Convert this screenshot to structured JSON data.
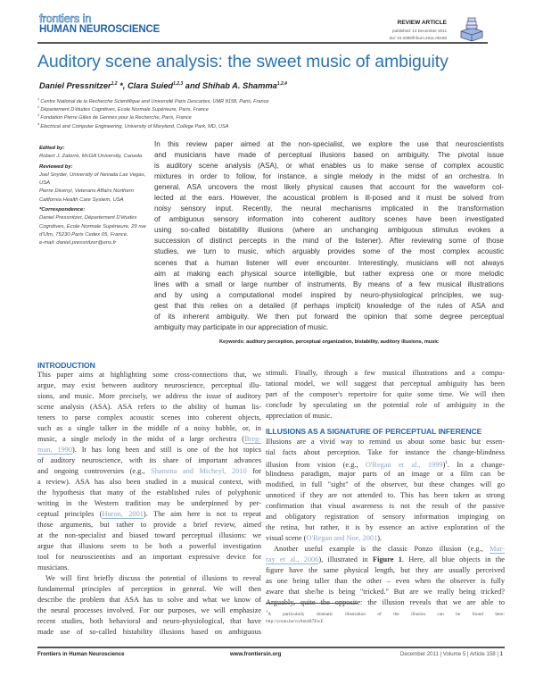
{
  "header": {
    "journal_top": "frontiers in",
    "journal_bottom": "HUMAN NEUROSCIENCE",
    "article_type": "REVIEW ARTICLE",
    "published": "published: 14 December 2011",
    "doi": "doi: 10.3389/fnhum.2011.00158",
    "logo_icon": "stacked-books-icon"
  },
  "title": "Auditory scene analysis: the sweet music of ambiguity",
  "authors": [
    {
      "name": "Daniel Pressnitzer",
      "sup": "1,2",
      "after": " *, "
    },
    {
      "name": "Clara Suied",
      "sup": "1,2,3",
      "after": " and "
    },
    {
      "name": "Shihab A. Shamma",
      "sup": "1,2,4",
      "after": ""
    }
  ],
  "affiliations": [
    {
      "sup": "1",
      "text": "Centre National de la Recherche Scientifique and Université Paris Descartes, UMR 8158, Paris, France"
    },
    {
      "sup": "2",
      "text": "Département D'études Cognitives, Ecole Normale Supérieure, Paris, France"
    },
    {
      "sup": "3",
      "text": "Fondation Pierre Gilles de Gennes pour la Recherche, Paris, France"
    },
    {
      "sup": "4",
      "text": "Electrical and Computer Engineering, University of Maryland, College Park, MD, USA"
    }
  ],
  "sidebar": {
    "edited_label": "Edited by:",
    "edited_text": "Robert J. Zatorre, McGill University, Canada",
    "reviewed_label": "Reviewed by:",
    "reviewed_text_1": "Joel Snyder, University of Nevada Las Vegas, USA",
    "reviewed_text_2": "Pierre Divenyi, Veterans Affairs Northern California Health Care System, USA",
    "corr_label": "*Correspondence:",
    "corr_text": "Daniel Pressnitzer, Département D'études Cognitives, Ecole Normale Supérieure, 29 rue d'Ulm, 75230 Paris Cedex 05, France.",
    "corr_email": "e-mail: daniel.pressnitzer@ens.fr"
  },
  "abstract": [
    "In this review paper aimed at the non-specialist, we explore the use that neuroscientists",
    "and musicians have made of perceptual illusions based on ambiguity. The pivotal issue",
    "is auditory scene analysis (ASA), or what enables us to make sense of complex acoustic",
    "mixtures in order to follow, for instance, a single melody in the midst of an orchestra. In",
    "general, ASA uncovers the most likely physical causes that account for the waveform col-",
    "lected at the ears. However, the acoustical problem is ill-posed and it must be solved from",
    "noisy sensory input. Recently, the neural mechanisms implicated in the transformation",
    "of ambiguous sensory information into coherent auditory scenes have been investigated",
    "using so-called bistability illusions (where an unchanging ambiguous stimulus evokes a",
    "succession of distinct percepts in the mind of the listener). After reviewing some of those",
    "studies, we turn to music, which arguably provides some of the most complex acoustic",
    "scenes that a human listener will ever encounter. Interestingly, musicians will not always",
    "aim at making each physical source intelligible, but rather express one or more melodic",
    "lines with a small or large number of instruments. By means of a few musical illustrations",
    "and by using a computational model inspired by neuro-physiological principles, we sug-",
    "gest that this relies on a detailed (if perhaps implicit) knowledge of the rules of ASA and",
    "of its inherent ambiguity. We then put forward the opinion that some degree perceptual",
    "ambiguity may participate in our appreciation of music."
  ],
  "keywords": "Keywords: auditory perception, perceptual organization, bistability, auditory illusions, music",
  "intro": {
    "heading": "INTRODUCTION",
    "lines": [
      [
        "This paper aims at highlighting some cross-connections that, we"
      ],
      [
        "argue, may exist between auditory neuroscience, perceptual illu-"
      ],
      [
        "sions, and music. More precisely, we address the issue of auditory"
      ],
      [
        "scene analysis (ASA). ASA refers to the ability of human lis-"
      ],
      [
        "teners to parse complex acoustic scenes into coherent objects,"
      ],
      [
        "such as a single talker in the middle of a noisy babble, or, in"
      ],
      [
        "music, a single melody in the midst of a large orchestra (",
        {
          "link": "Breg-",
          "u": true
        }
      ],
      [
        {
          "link": "man, 1990",
          "u": true
        },
        "). It has long been and still is one of the hot topics"
      ],
      [
        "of auditory neuroscience, with its share of important advances"
      ],
      [
        "and ongoing controversies (e.g., ",
        {
          "link": "Shamma and Micheyl, 2010"
        },
        " for"
      ],
      [
        "a review). ASA has also been studied in a musical context, with"
      ],
      [
        "the hypothesis that many of the established rules of polyphonic"
      ],
      [
        "writing in the Western tradition may be underpinned by per-"
      ],
      [
        "ceptual principles (",
        {
          "link": "Huron, 2001",
          "u": true
        },
        "). The aim here is not to repeat"
      ],
      [
        "those arguments, but rather to provide a brief review, aimed"
      ],
      [
        "at the non-specialist and biased toward perceptual illusions: we"
      ],
      [
        "argue that illusions seem to be both a powerful investigation"
      ],
      [
        "tool for neuroscientists and an important expressive device for"
      ],
      [
        "musicians.",
        {
          "end": true
        }
      ],
      [
        {
          "indent": true
        },
        "We will first briefly discuss the potential of illusions to reveal"
      ],
      [
        "fundamental principles of perception in general. We will then"
      ],
      [
        "describe the problem that ASA has to solve and what we know of"
      ],
      [
        "the neural processes involved. For our purposes, we will emphasize"
      ],
      [
        "recent studies, both behavioral and neuro-physiological, that have"
      ],
      [
        "made use of so-called bistability illusions based on ambiguous"
      ]
    ]
  },
  "continuation": {
    "lines": [
      [
        "stimuli. Finally, through a few musical illustrations and a compu-"
      ],
      [
        "tational model, we will suggest that perceptual ambiguity has been"
      ],
      [
        "part of the composer's repertoire for quite some time. We will then"
      ],
      [
        "conclude by speculating on the potential role of ambiguity in the"
      ],
      [
        "appreciation of music.",
        {
          "end": true
        }
      ]
    ]
  },
  "illusions": {
    "heading": "ILLUSIONS AS A SIGNATURE OF PERCEPTUAL INFERENCE",
    "lines": [
      [
        "Illusions are a vivid way to remind us about some basic but essen-"
      ],
      [
        "tial facts about perception. Take for instance the change-blindness"
      ],
      [
        "illusion from vision (e.g., ",
        {
          "link": "O'Regan et al., 1999"
        },
        ")",
        {
          "sup": "1"
        },
        ". In a change-"
      ],
      [
        "blindness paradigm, major parts of an image or a film can be"
      ],
      [
        "modified, in full \"sight\" of the observer, but these changes will go"
      ],
      [
        "unnoticed if they are not attended to. This has been taken as strong"
      ],
      [
        "confirmation that visual awareness is not the result of the passive"
      ],
      [
        "and obligatory registration of sensory information impinging on"
      ],
      [
        "the retina, but rather, it is by essence an active exploration of the"
      ],
      [
        "visual scene (",
        {
          "link": "O'Regan and Noe, 2001"
        },
        ").",
        {
          "end": true
        }
      ],
      [
        {
          "indent": true
        },
        "Another useful example is the classic Ponzo illusion (e.g., ",
        {
          "link": "Mur-",
          "u": true
        }
      ],
      [
        {
          "link": "ray et al., 2006",
          "u": true
        },
        "), illustrated in ",
        {
          "b": "Figure 1"
        },
        ". Here, all blue objects in the"
      ],
      [
        "figure have the same physical length, but they are usually perceived"
      ],
      [
        "as one being taller than the other – even when the observer is fully"
      ],
      [
        "aware that she/he is being \"tricked.\" But are we really being tricked?"
      ],
      [
        "Arguably, quite the opposite: the illusion reveals that we are able to"
      ]
    ]
  },
  "footnote": {
    "sup": "1",
    "text": "A particularly dramatic illustration of the illusion can be found here:",
    "url": "http://youtu.be/voAntzB7EwE"
  },
  "footer": {
    "journal": "Frontiers in Human Neuroscience",
    "website": "www.frontiersin.org",
    "issue": "December 2011 | Volume 5 | Article 158 | ",
    "page": "1"
  },
  "colors": {
    "title": "#2a74b8",
    "heading": "#1f66b4",
    "link": "#8ea6c6"
  }
}
